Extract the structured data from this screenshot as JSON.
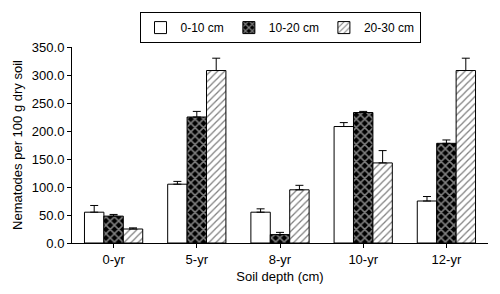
{
  "chart_data": {
    "type": "bar",
    "x_label": "Soil depth (cm)",
    "y_label": "Nematodes per 100 g dry soil",
    "categories": [
      "0-yr",
      "5-yr",
      "8-yr",
      "10-yr",
      "12-yr"
    ],
    "series": [
      {
        "name": "0-10 cm",
        "color": "#ffffff",
        "marker": "plain",
        "values": [
          55,
          105,
          55,
          208,
          75
        ],
        "errors": [
          12,
          5,
          6,
          7,
          8
        ]
      },
      {
        "name": "10-20 cm",
        "color": "#000000",
        "marker": "checkered",
        "values": [
          48,
          225,
          15,
          233,
          178
        ],
        "errors": [
          3,
          10,
          4,
          2,
          6
        ]
      },
      {
        "name": "20-30 cm",
        "color": "#ffffff",
        "marker": "hatched",
        "values": [
          25,
          308,
          95,
          143,
          308
        ],
        "errors": [
          2,
          22,
          8,
          22,
          22
        ]
      }
    ],
    "ylim": [
      0,
      350
    ],
    "yticks": [
      {
        "value": 0,
        "label": "0.0"
      },
      {
        "value": 50,
        "label": "50.0"
      },
      {
        "value": 100,
        "label": "100.0"
      },
      {
        "value": 150,
        "label": "150.0"
      },
      {
        "value": 200,
        "label": "200.0"
      },
      {
        "value": 250,
        "label": "250.0"
      },
      {
        "value": 300,
        "label": "300.0"
      },
      {
        "value": 350,
        "label": "350.0"
      }
    ],
    "grid": false,
    "legend": "top"
  }
}
